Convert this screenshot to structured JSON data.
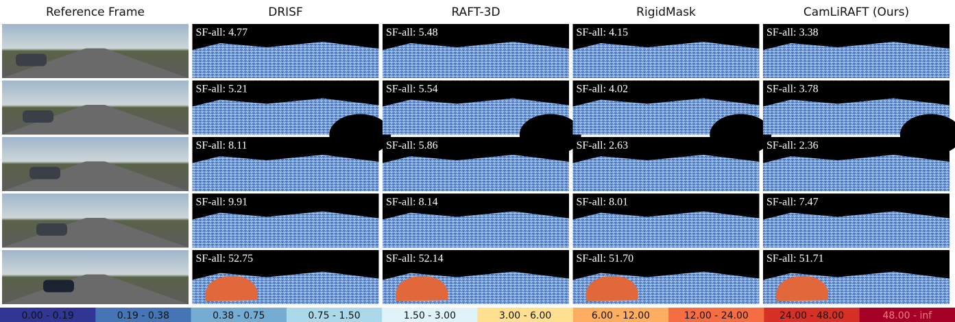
{
  "header": {
    "columns": [
      "Reference Frame",
      "DRISF",
      "RAFT-3D",
      "RigidMask",
      "CamLiRAFT (Ours)"
    ]
  },
  "rows": [
    [
      "SF-all: 4.77",
      "SF-all: 5.48",
      "SF-all: 4.15",
      "SF-all: 3.38"
    ],
    [
      "SF-all: 5.21",
      "SF-all: 5.54",
      "SF-all: 4.02",
      "SF-all: 3.78"
    ],
    [
      "SF-all: 8.11",
      "SF-all: 5.86",
      "SF-all: 2.63",
      "SF-all: 2.36"
    ],
    [
      "SF-all: 9.91",
      "SF-all: 8.14",
      "SF-all: 8.01",
      "SF-all: 7.47"
    ],
    [
      "SF-all: 52.75",
      "SF-all: 52.14",
      "SF-all: 51.70",
      "SF-all: 51.71"
    ]
  ],
  "legend": [
    {
      "label": "0.00 - 0.19",
      "color": "#313695"
    },
    {
      "label": "0.19 - 0.38",
      "color": "#4575b4"
    },
    {
      "label": "0.38 - 0.75",
      "color": "#74add1"
    },
    {
      "label": "0.75 - 1.50",
      "color": "#abd9e9"
    },
    {
      "label": "1.50 - 3.00",
      "color": "#e0f3f8"
    },
    {
      "label": "3.00 - 6.00",
      "color": "#fee090"
    },
    {
      "label": "6.00 - 12.00",
      "color": "#fdae61"
    },
    {
      "label": "12.00 - 24.00",
      "color": "#f46d43"
    },
    {
      "label": "24.00 - 48.00",
      "color": "#d73027"
    },
    {
      "label": "48.00 - inf",
      "color": "#a50026"
    }
  ]
}
